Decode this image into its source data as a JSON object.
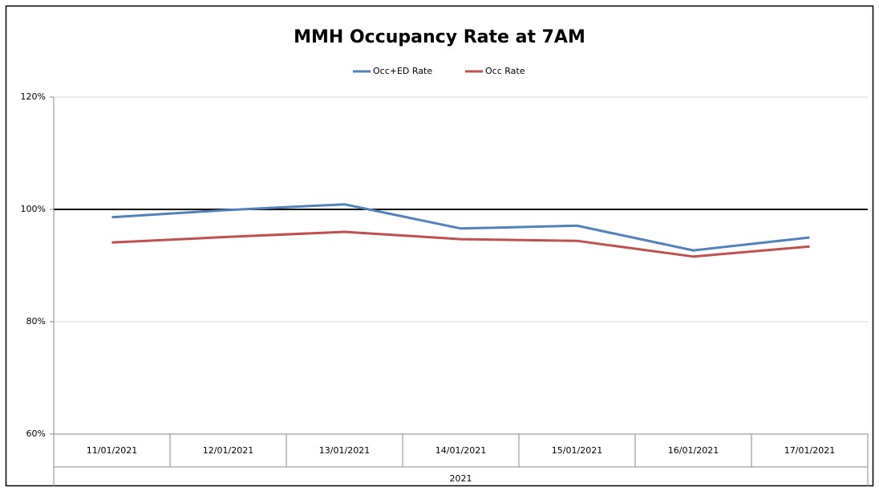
{
  "chart_data": {
    "type": "line",
    "title": "MMH Occupancy Rate at 7AM",
    "categories": [
      "11/01/2021",
      "12/01/2021",
      "13/01/2021",
      "14/01/2021",
      "15/01/2021",
      "16/01/2021",
      "17/01/2021"
    ],
    "category_group": "2021",
    "series": [
      {
        "name": "Occ+ED Rate",
        "color": "#4f81bd",
        "values": [
          98.6,
          99.9,
          100.9,
          96.6,
          97.1,
          92.7,
          95.0
        ]
      },
      {
        "name": "Occ Rate",
        "color": "#c0504d",
        "values": [
          94.1,
          95.1,
          96.0,
          94.7,
          94.4,
          91.6,
          93.4
        ]
      }
    ],
    "ylim": [
      60,
      120
    ],
    "yticks": [
      {
        "value": 60,
        "label": "60%"
      },
      {
        "value": 80,
        "label": "80%"
      },
      {
        "value": 100,
        "label": "100%"
      },
      {
        "value": 120,
        "label": "120%"
      }
    ],
    "reference_line": 100,
    "grid": true,
    "legend": "top"
  }
}
